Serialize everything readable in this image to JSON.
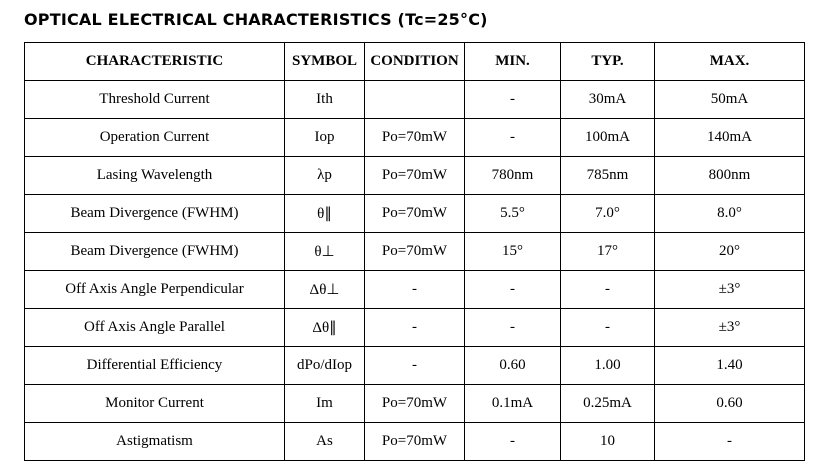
{
  "title": "OPTICAL ELECTRICAL CHARACTERISTICS (Tc=25°C)",
  "headers": [
    "CHARACTERISTIC",
    "SYMBOL",
    "CONDITION",
    "MIN.",
    "TYP.",
    "MAX."
  ],
  "rows": [
    [
      "Threshold Current",
      "Ith",
      "",
      "-",
      "30mA",
      "50mA"
    ],
    [
      "Operation Current",
      "Iop",
      "Po=70mW",
      "-",
      "100mA",
      "140mA"
    ],
    [
      "Lasing Wavelength",
      "λp",
      "Po=70mW",
      "780nm",
      "785nm",
      "800nm"
    ],
    [
      "Beam Divergence (FWHM)",
      "θ∥",
      "Po=70mW",
      "5.5°",
      "7.0°",
      "8.0°"
    ],
    [
      "Beam Divergence (FWHM)",
      "θ⊥",
      "Po=70mW",
      "15°",
      "17°",
      "20°"
    ],
    [
      "Off Axis Angle Perpendicular",
      "Δθ⊥",
      "-",
      "-",
      "-",
      "±3°"
    ],
    [
      "Off Axis Angle Parallel",
      "Δθ∥",
      "-",
      "-",
      "-",
      "±3°"
    ],
    [
      "Differential Efficiency",
      "dPo/dIop",
      "-",
      "0.60",
      "1.00",
      "1.40"
    ],
    [
      "Monitor Current",
      "Im",
      "Po=70mW",
      "0.1mA",
      "0.25mA",
      "0.60"
    ],
    [
      "Astigmatism",
      "As",
      "Po=70mW",
      "-",
      "10",
      "-"
    ]
  ]
}
